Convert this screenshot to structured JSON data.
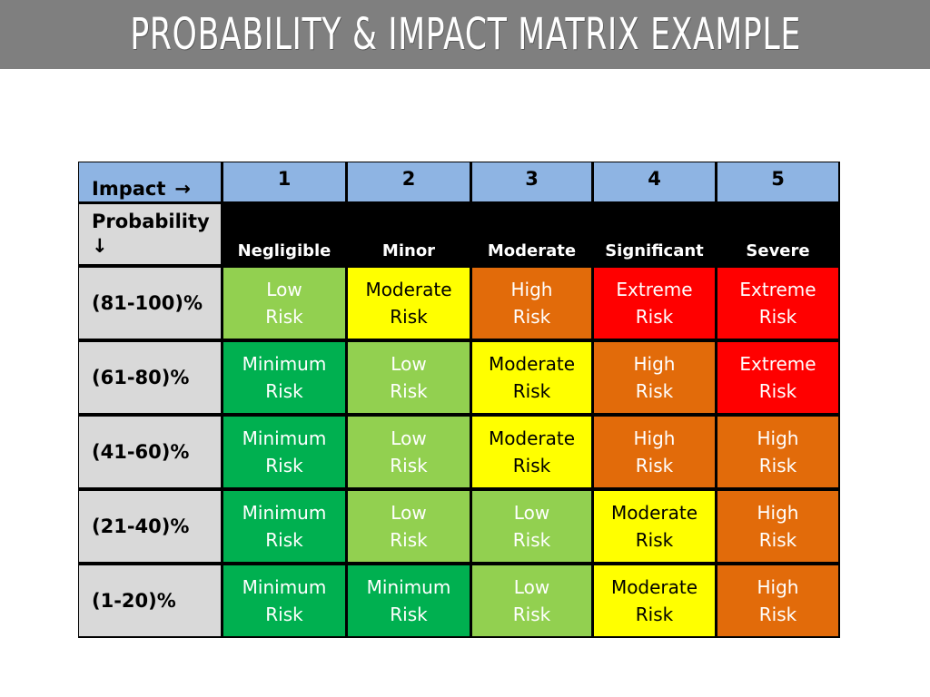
{
  "title": "PROBABILITY & IMPACT MATRIX EXAMPLE",
  "matrix": {
    "impact_label": "Impact",
    "impact_arrow": "→",
    "probability_label": "Probability",
    "probability_arrow": "↓",
    "impact_numbers": [
      "1",
      "2",
      "3",
      "4",
      "5"
    ],
    "severity_labels": [
      "Negligible",
      "Minor",
      "Moderate",
      "Significant",
      "Severe"
    ],
    "rows": [
      {
        "label": "(81-100)%",
        "cells": [
          {
            "l1": "Low",
            "l2": "Risk",
            "level": "low"
          },
          {
            "l1": "Moderate",
            "l2": "Risk",
            "level": "moderate"
          },
          {
            "l1": "High",
            "l2": "Risk",
            "level": "high"
          },
          {
            "l1": "Extreme",
            "l2": "Risk",
            "level": "extreme"
          },
          {
            "l1": "Extreme",
            "l2": "Risk",
            "level": "extreme"
          }
        ]
      },
      {
        "label": "(61-80)%",
        "cells": [
          {
            "l1": "Minimum",
            "l2": "Risk",
            "level": "minimum"
          },
          {
            "l1": "Low",
            "l2": "Risk",
            "level": "low"
          },
          {
            "l1": "Moderate",
            "l2": "Risk",
            "level": "moderate"
          },
          {
            "l1": "High",
            "l2": "Risk",
            "level": "high"
          },
          {
            "l1": "Extreme",
            "l2": "Risk",
            "level": "extreme"
          }
        ]
      },
      {
        "label": "(41-60)%",
        "cells": [
          {
            "l1": "Minimum",
            "l2": "Risk",
            "level": "minimum"
          },
          {
            "l1": "Low",
            "l2": "Risk",
            "level": "low"
          },
          {
            "l1": "Moderate",
            "l2": "Risk",
            "level": "moderate"
          },
          {
            "l1": "High",
            "l2": "Risk",
            "level": "high"
          },
          {
            "l1": "High",
            "l2": "Risk",
            "level": "high"
          }
        ]
      },
      {
        "label": "(21-40)%",
        "cells": [
          {
            "l1": "Minimum",
            "l2": "Risk",
            "level": "minimum"
          },
          {
            "l1": "Low",
            "l2": "Risk",
            "level": "low"
          },
          {
            "l1": "Low",
            "l2": "Risk",
            "level": "low"
          },
          {
            "l1": "Moderate",
            "l2": "Risk",
            "level": "moderate"
          },
          {
            "l1": "High",
            "l2": "Risk",
            "level": "high"
          }
        ]
      },
      {
        "label": "(1-20)%",
        "cells": [
          {
            "l1": "Minimum",
            "l2": "Risk",
            "level": "minimum"
          },
          {
            "l1": "Minimum",
            "l2": "Risk",
            "level": "minimum"
          },
          {
            "l1": "Low",
            "l2": "Risk",
            "level": "low"
          },
          {
            "l1": "Moderate",
            "l2": "Risk",
            "level": "moderate"
          },
          {
            "l1": "High",
            "l2": "Risk",
            "level": "high"
          }
        ]
      }
    ]
  },
  "colors": {
    "title_bar": "#7f7f7f",
    "impact_header": "#8eb4e3",
    "label_cells": "#d9d9d9",
    "severity_header": "#000000",
    "minimum": "#00b050",
    "low": "#92d050",
    "moderate": "#ffff00",
    "high": "#e26b0a",
    "extreme": "#ff0000"
  }
}
